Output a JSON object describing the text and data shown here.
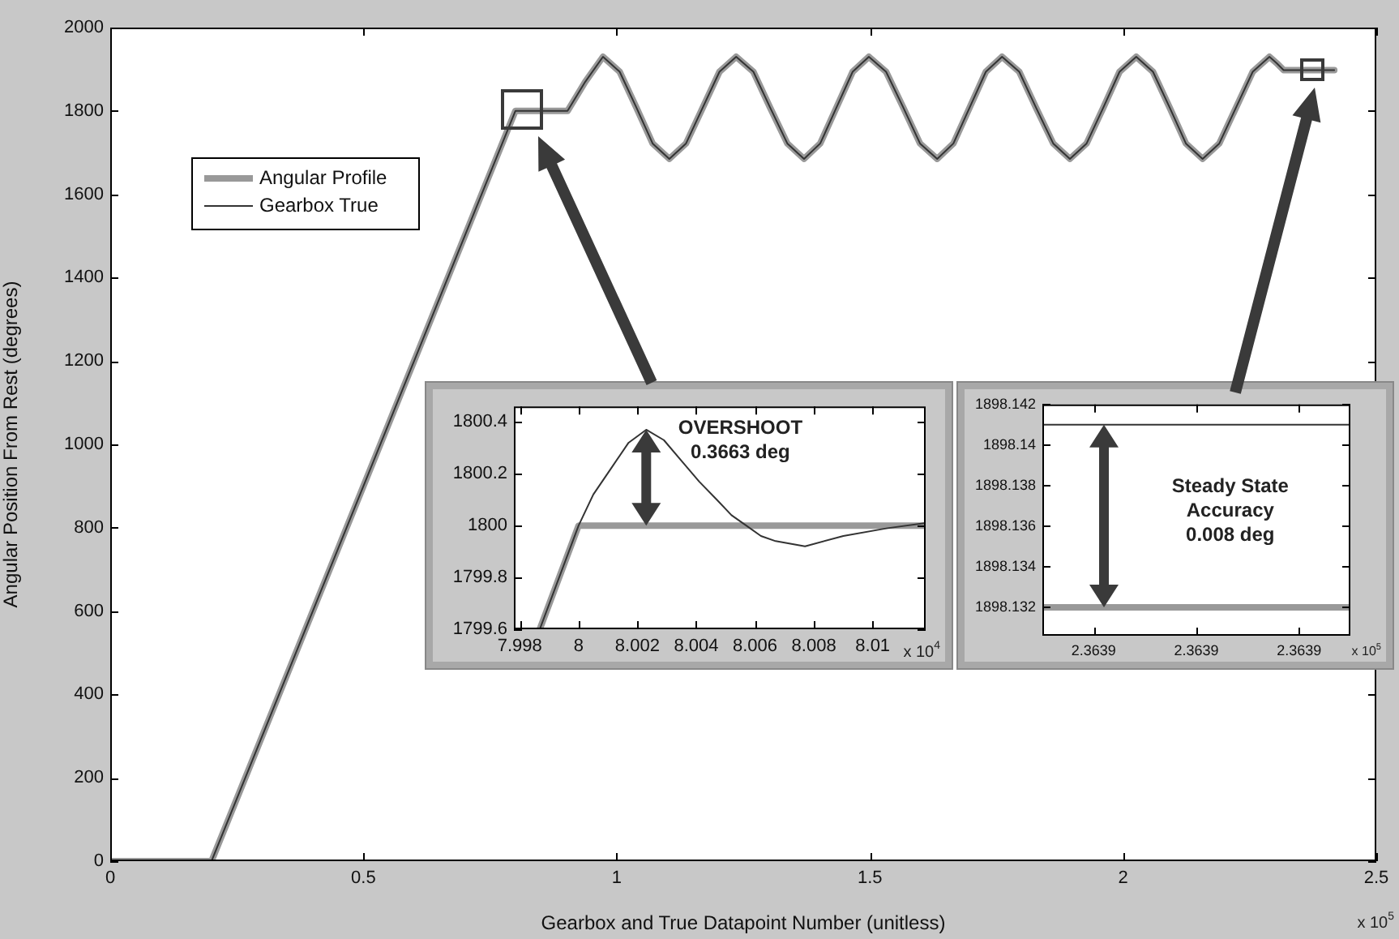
{
  "chart_data": [
    {
      "type": "line",
      "xlabel": "Gearbox and True Datapoint Number (unitless)",
      "ylabel": "Angular Position From Rest (degrees)",
      "x": [
        0,
        0.2,
        0.8,
        0.903,
        0.938,
        0.973,
        1.006,
        1.039,
        1.071,
        1.104,
        1.137,
        1.17,
        1.203,
        1.236,
        1.27,
        1.303,
        1.337,
        1.37,
        1.402,
        1.434,
        1.466,
        1.498,
        1.532,
        1.566,
        1.599,
        1.633,
        1.665,
        1.697,
        1.729,
        1.761,
        1.795,
        1.828,
        1.862,
        1.895,
        1.928,
        1.961,
        1.993,
        2.026,
        2.059,
        2.092,
        2.124,
        2.157,
        2.19,
        2.223,
        2.256,
        2.289,
        2.303,
        2.317,
        2.417
      ],
      "series": [
        {
          "name": "Angular Profile",
          "color": "#999999",
          "values": [
            0,
            0,
            1800,
            1800,
            1870,
            1930,
            1894,
            1808,
            1722,
            1685,
            1722,
            1808,
            1894,
            1930,
            1894,
            1808,
            1722,
            1685,
            1722,
            1808,
            1894,
            1930,
            1894,
            1808,
            1722,
            1685,
            1722,
            1808,
            1894,
            1930,
            1894,
            1808,
            1722,
            1685,
            1722,
            1808,
            1894,
            1930,
            1894,
            1808,
            1722,
            1685,
            1722,
            1808,
            1894,
            1930,
            1915,
            1898,
            1898
          ]
        },
        {
          "name": "Gearbox True",
          "color": "#333333",
          "values": [
            0,
            0,
            1800,
            1800,
            1870,
            1930,
            1894,
            1808,
            1722,
            1685,
            1722,
            1808,
            1894,
            1930,
            1894,
            1808,
            1722,
            1685,
            1722,
            1808,
            1894,
            1930,
            1894,
            1808,
            1722,
            1685,
            1722,
            1808,
            1894,
            1930,
            1894,
            1808,
            1722,
            1685,
            1722,
            1808,
            1894,
            1930,
            1894,
            1808,
            1722,
            1685,
            1722,
            1808,
            1894,
            1930,
            1915,
            1898,
            1898
          ]
        }
      ],
      "xlim": [
        0,
        2.5
      ],
      "xticks": [
        0,
        0.5,
        1,
        1.5,
        2,
        2.5
      ],
      "ylim": [
        0,
        2000
      ],
      "yticks": [
        0,
        200,
        400,
        600,
        800,
        1000,
        1200,
        1400,
        1600,
        1800,
        2000
      ],
      "legend": "top left",
      "grid": false,
      "annotations": [
        "x 10$^{5}$"
      ]
    },
    {
      "type": "line",
      "series": [
        {
          "color": "#999999",
          "x": [
            7.99868,
            8.0,
            8.0118
          ],
          "values": [
            1799.6,
            1800,
            1800
          ]
        },
        {
          "color": "#333333",
          "x": [
            7.99868,
            8.0,
            8.0005,
            8.0011,
            8.0017,
            8.0023,
            8.0029,
            8.0035,
            8.0041,
            8.0047,
            8.0052,
            8.0057,
            8.0062,
            8.0067,
            8.0077,
            8.009,
            8.0105,
            8.0118
          ],
          "values": [
            1799.6,
            1800,
            1800.12,
            1800.22,
            1800.32,
            1800.37,
            1800.33,
            1800.25,
            1800.17,
            1800.1,
            1800.04,
            1800,
            1799.96,
            1799.94,
            1799.92,
            1799.96,
            1799.99,
            1800.01
          ]
        }
      ],
      "xlim": [
        7.9978,
        8.0118
      ],
      "xticks": [
        7.998,
        8,
        8.002,
        8.004,
        8.006,
        8.008,
        8.01
      ],
      "ylim": [
        1799.6,
        1800.46
      ],
      "yticks": [
        1799.6,
        1799.8,
        1800,
        1800.2,
        1800.4
      ],
      "grid": false,
      "annotations": [
        "OVERSHOOT",
        "0.3663 deg",
        "x 10$^{4}$"
      ]
    },
    {
      "type": "line",
      "series": [
        {
          "color": "#999999",
          "x": [
            2.363885,
            2.363915
          ],
          "values": [
            1898.132,
            1898.132
          ]
        },
        {
          "color": "#333333",
          "x": [
            2.363885,
            2.363915
          ],
          "values": [
            1898.141,
            1898.141
          ]
        }
      ],
      "xlim": [
        2.363885,
        2.363915
      ],
      "xticks": [
        {
          "value": 2.36389,
          "label": "2.3639"
        },
        {
          "value": 2.3639,
          "label": "2.3639"
        },
        {
          "value": 2.36391,
          "label": "2.3639"
        }
      ],
      "ylim": [
        1898.1306,
        1898.142
      ],
      "yticks": [
        1898.132,
        1898.134,
        1898.136,
        1898.138,
        1898.14,
        1898.142
      ],
      "grid": false,
      "annotations": [
        "Steady State",
        "Accuracy",
        "0.008 deg",
        "x 10$^{5}$"
      ]
    }
  ]
}
